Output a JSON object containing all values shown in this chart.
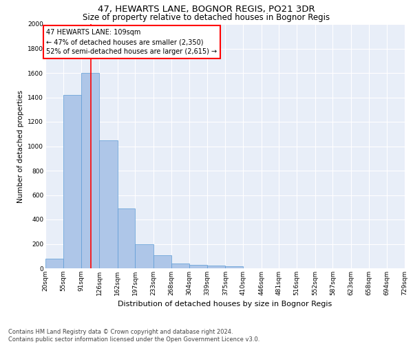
{
  "title1": "47, HEWARTS LANE, BOGNOR REGIS, PO21 3DR",
  "title2": "Size of property relative to detached houses in Bognor Regis",
  "xlabel": "Distribution of detached houses by size in Bognor Regis",
  "ylabel": "Number of detached properties",
  "footer1": "Contains HM Land Registry data © Crown copyright and database right 2024.",
  "footer2": "Contains public sector information licensed under the Open Government Licence v3.0.",
  "annotation_line1": "47 HEWARTS LANE: 109sqm",
  "annotation_line2": "← 47% of detached houses are smaller (2,350)",
  "annotation_line3": "52% of semi-detached houses are larger (2,615) →",
  "bar_edges": [
    20,
    55,
    91,
    126,
    162,
    197,
    233,
    268,
    304,
    339,
    375,
    410,
    446,
    481,
    516,
    552,
    587,
    623,
    658,
    694,
    729
  ],
  "bar_heights": [
    80,
    1420,
    1600,
    1050,
    490,
    200,
    105,
    40,
    28,
    22,
    18,
    0,
    0,
    0,
    0,
    0,
    0,
    0,
    0,
    0
  ],
  "bar_color": "#aec6e8",
  "bar_edgecolor": "#5b9bd5",
  "tick_labels": [
    "20sqm",
    "55sqm",
    "91sqm",
    "126sqm",
    "162sqm",
    "197sqm",
    "233sqm",
    "268sqm",
    "304sqm",
    "339sqm",
    "375sqm",
    "410sqm",
    "446sqm",
    "481sqm",
    "516sqm",
    "552sqm",
    "587sqm",
    "623sqm",
    "658sqm",
    "694sqm",
    "729sqm"
  ],
  "red_line_x": 109,
  "ylim": [
    0,
    2000
  ],
  "yticks": [
    0,
    200,
    400,
    600,
    800,
    1000,
    1200,
    1400,
    1600,
    1800,
    2000
  ],
  "plot_bg_color": "#e8eef8",
  "fig_bg_color": "#ffffff",
  "title1_fontsize": 9.5,
  "title2_fontsize": 8.5,
  "xlabel_fontsize": 8,
  "ylabel_fontsize": 7.5,
  "tick_fontsize": 6.5,
  "footer_fontsize": 6,
  "ann_fontsize": 7
}
